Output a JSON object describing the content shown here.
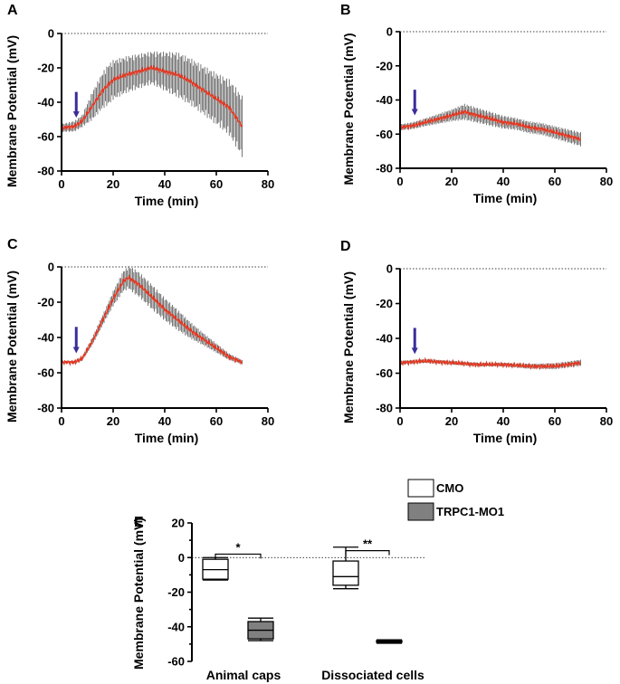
{
  "colors": {
    "trace": "#e8361f",
    "error_bar": "#555555",
    "arrow": "#3a2d9a",
    "cmo_fill": "#ffffff",
    "trpc1_fill": "#808080"
  },
  "chart_data": [
    {
      "panel": "A",
      "type": "line",
      "xlabel": "Time (min)",
      "ylabel": "Membrane Potential (mV)",
      "xlim": [
        0,
        80
      ],
      "ylim": [
        -80,
        0
      ],
      "xticks": [
        0,
        20,
        40,
        60,
        80
      ],
      "yticks": [
        0,
        -20,
        -40,
        -60,
        -80
      ],
      "reference_line_y": 0,
      "arrow_time": 5,
      "mean_keypoints": [
        [
          0,
          -55
        ],
        [
          5,
          -54
        ],
        [
          8,
          -51
        ],
        [
          12,
          -42
        ],
        [
          16,
          -33
        ],
        [
          20,
          -27
        ],
        [
          25,
          -24
        ],
        [
          30,
          -22
        ],
        [
          35,
          -20
        ],
        [
          40,
          -22
        ],
        [
          45,
          -24
        ],
        [
          50,
          -28
        ],
        [
          55,
          -33
        ],
        [
          60,
          -38
        ],
        [
          65,
          -43
        ],
        [
          70,
          -54
        ]
      ],
      "error_keypoints": [
        [
          0,
          2
        ],
        [
          8,
          3
        ],
        [
          12,
          7
        ],
        [
          18,
          10
        ],
        [
          25,
          9
        ],
        [
          35,
          8
        ],
        [
          45,
          11
        ],
        [
          55,
          12
        ],
        [
          62,
          13
        ],
        [
          70,
          15
        ]
      ]
    },
    {
      "panel": "B",
      "type": "line",
      "xlabel": "Time (min)",
      "ylabel": "Membrane Potential (mV)",
      "xlim": [
        0,
        80
      ],
      "ylim": [
        -80,
        0
      ],
      "xticks": [
        0,
        20,
        40,
        60,
        80
      ],
      "yticks": [
        0,
        -20,
        -40,
        -60,
        -80
      ],
      "reference_line_y": 0,
      "arrow_time": 5,
      "mean_keypoints": [
        [
          0,
          -56
        ],
        [
          5,
          -55
        ],
        [
          10,
          -53
        ],
        [
          15,
          -51
        ],
        [
          20,
          -49
        ],
        [
          25,
          -47
        ],
        [
          30,
          -49
        ],
        [
          35,
          -51
        ],
        [
          40,
          -53
        ],
        [
          45,
          -54
        ],
        [
          50,
          -56
        ],
        [
          55,
          -57
        ],
        [
          60,
          -59
        ],
        [
          65,
          -61
        ],
        [
          70,
          -63
        ]
      ],
      "error_keypoints": [
        [
          0,
          1.5
        ],
        [
          10,
          2
        ],
        [
          20,
          3
        ],
        [
          25,
          4
        ],
        [
          35,
          3.5
        ],
        [
          45,
          3
        ],
        [
          55,
          3
        ],
        [
          70,
          3.5
        ]
      ]
    },
    {
      "panel": "C",
      "type": "line",
      "xlabel": "Time (min)",
      "ylabel": "Membrane Potential (mV)",
      "xlim": [
        0,
        80
      ],
      "ylim": [
        -80,
        0
      ],
      "xticks": [
        0,
        20,
        40,
        60,
        80
      ],
      "yticks": [
        0,
        -20,
        -40,
        -60,
        -80
      ],
      "reference_line_y": 0,
      "arrow_time": 5,
      "mean_keypoints": [
        [
          0,
          -54
        ],
        [
          5,
          -54
        ],
        [
          8,
          -52
        ],
        [
          12,
          -42
        ],
        [
          16,
          -30
        ],
        [
          20,
          -18
        ],
        [
          24,
          -8
        ],
        [
          26,
          -6
        ],
        [
          30,
          -10
        ],
        [
          35,
          -17
        ],
        [
          40,
          -24
        ],
        [
          45,
          -30
        ],
        [
          50,
          -36
        ],
        [
          55,
          -41
        ],
        [
          60,
          -46
        ],
        [
          65,
          -51
        ],
        [
          70,
          -54
        ]
      ],
      "error_keypoints": [
        [
          0,
          0.5
        ],
        [
          8,
          1
        ],
        [
          12,
          2
        ],
        [
          18,
          3
        ],
        [
          24,
          5
        ],
        [
          28,
          6
        ],
        [
          35,
          6
        ],
        [
          45,
          5
        ],
        [
          55,
          3
        ],
        [
          62,
          2
        ],
        [
          70,
          1
        ]
      ]
    },
    {
      "panel": "D",
      "type": "line",
      "xlabel": "Time (min)",
      "ylabel": "Membrane Potential (mV)",
      "xlim": [
        0,
        80
      ],
      "ylim": [
        -80,
        0
      ],
      "xticks": [
        0,
        20,
        40,
        60,
        80
      ],
      "yticks": [
        0,
        -20,
        -40,
        -60,
        -80
      ],
      "reference_line_y": 0,
      "arrow_time": 5,
      "mean_keypoints": [
        [
          0,
          -54
        ],
        [
          10,
          -53
        ],
        [
          20,
          -54
        ],
        [
          30,
          -55
        ],
        [
          40,
          -55
        ],
        [
          50,
          -56
        ],
        [
          60,
          -56
        ],
        [
          65,
          -55
        ],
        [
          70,
          -54
        ]
      ],
      "error_keypoints": [
        [
          0,
          1
        ],
        [
          20,
          1
        ],
        [
          40,
          1
        ],
        [
          60,
          1.5
        ],
        [
          70,
          1.5
        ]
      ]
    },
    {
      "panel": "E",
      "type": "box",
      "ylabel": "Membrane Potential (mV)",
      "ylim": [
        -60,
        20
      ],
      "yticks": [
        20,
        0,
        -20,
        -40,
        -60
      ],
      "reference_line_y": 0,
      "categories": [
        "Animal caps",
        "Dissociated cells"
      ],
      "legend": [
        {
          "label": "CMO",
          "fill_key": "cmo_fill"
        },
        {
          "label": "TRPC1-MO1",
          "fill_key": "trpc1_fill"
        }
      ],
      "boxes": [
        {
          "category": "Animal caps",
          "group": "CMO",
          "min": -13,
          "q1": -12.5,
          "median": -7,
          "q3": -1,
          "max": 0
        },
        {
          "category": "Animal caps",
          "group": "TRPC1-MO1",
          "min": -48,
          "q1": -47,
          "median": -42,
          "q3": -37,
          "max": -35
        },
        {
          "category": "Dissociated cells",
          "group": "CMO",
          "min": -18,
          "q1": -16,
          "median": -11,
          "q3": -2,
          "max": 6
        },
        {
          "category": "Dissociated cells",
          "group": "TRPC1-MO1",
          "min": -49.5,
          "q1": -49,
          "median": -48.5,
          "q3": -48,
          "max": -47.5
        }
      ],
      "significance": [
        {
          "category": "Animal caps",
          "label": "*"
        },
        {
          "category": "Dissociated cells",
          "label": "**"
        }
      ]
    }
  ]
}
